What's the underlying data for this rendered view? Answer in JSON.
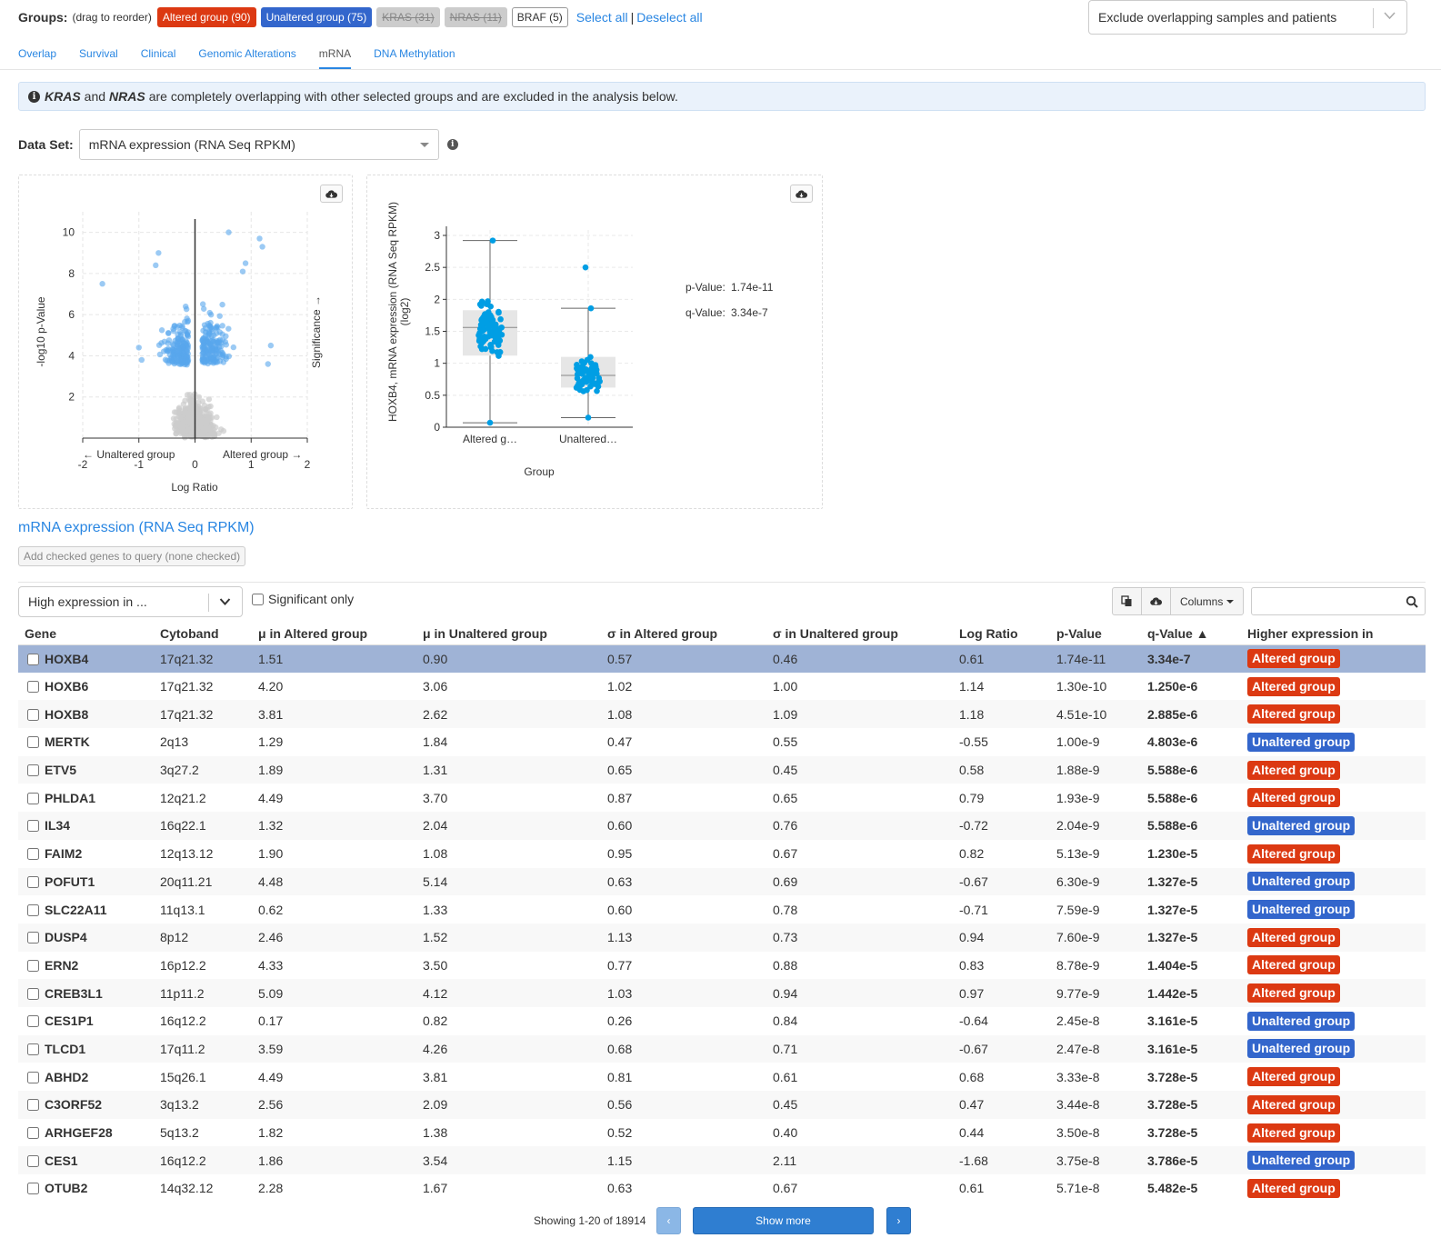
{
  "groups": {
    "label": "Groups:",
    "hint": "(drag to reorder)",
    "items": [
      {
        "label": "Altered group (90)",
        "kind": "altered"
      },
      {
        "label": "Unaltered group (75)",
        "kind": "unaltered"
      },
      {
        "label": "KRAS (31)",
        "kind": "disabled"
      },
      {
        "label": "NRAS (11)",
        "kind": "disabled"
      },
      {
        "label": "BRAF (5)",
        "kind": "plain"
      }
    ],
    "select_all": "Select all",
    "separator": "|",
    "deselect_all": "Deselect all"
  },
  "overlap_select": {
    "value": "Exclude overlapping samples and patients"
  },
  "tabs": [
    {
      "label": "Overlap",
      "active": false
    },
    {
      "label": "Survival",
      "active": false
    },
    {
      "label": "Clinical",
      "active": false
    },
    {
      "label": "Genomic Alterations",
      "active": false
    },
    {
      "label": "mRNA",
      "active": true
    },
    {
      "label": "DNA Methylation",
      "active": false
    }
  ],
  "alert": {
    "gene1": "KRAS",
    "and": "and",
    "gene2": "NRAS",
    "text": "are completely overlapping with other selected groups and are excluded in the analysis below."
  },
  "dataset": {
    "label": "Data Set:",
    "value": "mRNA expression (RNA Seq RPKM)"
  },
  "volcano": {
    "xlabel": "Log Ratio",
    "ylabel": "-log10 p-Value",
    "right_label": "Significance →",
    "left_arrow": "← Unaltered group",
    "right_arrow": "Altered group →",
    "xticks": [
      "-2",
      "-1",
      "0",
      "1",
      "2"
    ],
    "yticks": [
      "2",
      "4",
      "6",
      "8",
      "10"
    ]
  },
  "boxplot": {
    "ylabel": "HOXB4, mRNA expression (RNA Seq RPKM)",
    "ylabel2": "(log2)",
    "xlabel": "Group",
    "categories": [
      "Altered g…",
      "Unaltered…"
    ],
    "yticks": [
      "0",
      "0.5",
      "1",
      "1.5",
      "2",
      "2.5",
      "3"
    ],
    "pvalue_label": "p-Value:",
    "pvalue": "1.74e-11",
    "qvalue_label": "q-Value:",
    "qvalue": "3.34e-7"
  },
  "chart_data": [
    {
      "type": "scatter",
      "xlabel": "Log Ratio",
      "ylabel": "-log10 p-Value",
      "xlim": [
        -2,
        2
      ],
      "ylim": [
        0,
        11
      ],
      "grid": true,
      "colors": {
        "significant": "#58a6ec",
        "insignificant": "#cccccc"
      }
    },
    {
      "type": "box",
      "categories": [
        "Altered group",
        "Unaltered group"
      ],
      "ylabel": "HOXB4, mRNA expression (RNA Seq RPKM) (log2)",
      "xlabel": "Group",
      "ylim": [
        0,
        3
      ],
      "grid": true,
      "boxes": [
        {
          "name": "Altered group",
          "min": 0.07,
          "q1": 1.12,
          "median": 1.56,
          "q3": 1.83,
          "max": 2.92
        },
        {
          "name": "Unaltered group",
          "min": 0.15,
          "q1": 0.62,
          "median": 0.81,
          "q3": 1.1,
          "max": 1.86
        }
      ],
      "color": "#009ee4"
    }
  ],
  "table_section": {
    "title": "mRNA expression (RNA Seq RPKM)",
    "add_btn": "Add checked genes to query (none checked)",
    "filter_value": "High expression in ...",
    "significant_only": "Significant only",
    "columns_btn": "Columns"
  },
  "table": {
    "headers": [
      "Gene",
      "Cytoband",
      "μ in Altered group",
      "μ in Unaltered group",
      "σ in Altered group",
      "σ in Unaltered group",
      "Log Ratio",
      "p-Value",
      "q-Value ▲",
      "Higher expression in"
    ],
    "rows": [
      {
        "gene": "HOXB4",
        "cytoband": "17q21.32",
        "mu_a": "1.51",
        "mu_u": "0.90",
        "sd_a": "0.57",
        "sd_u": "0.46",
        "lr": "0.61",
        "p": "1.74e-11",
        "q": "3.34e-7",
        "higher": "Altered group"
      },
      {
        "gene": "HOXB6",
        "cytoband": "17q21.32",
        "mu_a": "4.20",
        "mu_u": "3.06",
        "sd_a": "1.02",
        "sd_u": "1.00",
        "lr": "1.14",
        "p": "1.30e-10",
        "q": "1.250e-6",
        "higher": "Altered group"
      },
      {
        "gene": "HOXB8",
        "cytoband": "17q21.32",
        "mu_a": "3.81",
        "mu_u": "2.62",
        "sd_a": "1.08",
        "sd_u": "1.09",
        "lr": "1.18",
        "p": "4.51e-10",
        "q": "2.885e-6",
        "higher": "Altered group"
      },
      {
        "gene": "MERTK",
        "cytoband": "2q13",
        "mu_a": "1.29",
        "mu_u": "1.84",
        "sd_a": "0.47",
        "sd_u": "0.55",
        "lr": "-0.55",
        "p": "1.00e-9",
        "q": "4.803e-6",
        "higher": "Unaltered group"
      },
      {
        "gene": "ETV5",
        "cytoband": "3q27.2",
        "mu_a": "1.89",
        "mu_u": "1.31",
        "sd_a": "0.65",
        "sd_u": "0.45",
        "lr": "0.58",
        "p": "1.88e-9",
        "q": "5.588e-6",
        "higher": "Altered group"
      },
      {
        "gene": "PHLDA1",
        "cytoband": "12q21.2",
        "mu_a": "4.49",
        "mu_u": "3.70",
        "sd_a": "0.87",
        "sd_u": "0.65",
        "lr": "0.79",
        "p": "1.93e-9",
        "q": "5.588e-6",
        "higher": "Altered group"
      },
      {
        "gene": "IL34",
        "cytoband": "16q22.1",
        "mu_a": "1.32",
        "mu_u": "2.04",
        "sd_a": "0.60",
        "sd_u": "0.76",
        "lr": "-0.72",
        "p": "2.04e-9",
        "q": "5.588e-6",
        "higher": "Unaltered group"
      },
      {
        "gene": "FAIM2",
        "cytoband": "12q13.12",
        "mu_a": "1.90",
        "mu_u": "1.08",
        "sd_a": "0.95",
        "sd_u": "0.67",
        "lr": "0.82",
        "p": "5.13e-9",
        "q": "1.230e-5",
        "higher": "Altered group"
      },
      {
        "gene": "POFUT1",
        "cytoband": "20q11.21",
        "mu_a": "4.48",
        "mu_u": "5.14",
        "sd_a": "0.63",
        "sd_u": "0.69",
        "lr": "-0.67",
        "p": "6.30e-9",
        "q": "1.327e-5",
        "higher": "Unaltered group"
      },
      {
        "gene": "SLC22A11",
        "cytoband": "11q13.1",
        "mu_a": "0.62",
        "mu_u": "1.33",
        "sd_a": "0.60",
        "sd_u": "0.78",
        "lr": "-0.71",
        "p": "7.59e-9",
        "q": "1.327e-5",
        "higher": "Unaltered group"
      },
      {
        "gene": "DUSP4",
        "cytoband": "8p12",
        "mu_a": "2.46",
        "mu_u": "1.52",
        "sd_a": "1.13",
        "sd_u": "0.73",
        "lr": "0.94",
        "p": "7.60e-9",
        "q": "1.327e-5",
        "higher": "Altered group"
      },
      {
        "gene": "ERN2",
        "cytoband": "16p12.2",
        "mu_a": "4.33",
        "mu_u": "3.50",
        "sd_a": "0.77",
        "sd_u": "0.88",
        "lr": "0.83",
        "p": "8.78e-9",
        "q": "1.404e-5",
        "higher": "Altered group"
      },
      {
        "gene": "CREB3L1",
        "cytoband": "11p11.2",
        "mu_a": "5.09",
        "mu_u": "4.12",
        "sd_a": "1.03",
        "sd_u": "0.94",
        "lr": "0.97",
        "p": "9.77e-9",
        "q": "1.442e-5",
        "higher": "Altered group"
      },
      {
        "gene": "CES1P1",
        "cytoband": "16q12.2",
        "mu_a": "0.17",
        "mu_u": "0.82",
        "sd_a": "0.26",
        "sd_u": "0.84",
        "lr": "-0.64",
        "p": "2.45e-8",
        "q": "3.161e-5",
        "higher": "Unaltered group"
      },
      {
        "gene": "TLCD1",
        "cytoband": "17q11.2",
        "mu_a": "3.59",
        "mu_u": "4.26",
        "sd_a": "0.68",
        "sd_u": "0.71",
        "lr": "-0.67",
        "p": "2.47e-8",
        "q": "3.161e-5",
        "higher": "Unaltered group"
      },
      {
        "gene": "ABHD2",
        "cytoband": "15q26.1",
        "mu_a": "4.49",
        "mu_u": "3.81",
        "sd_a": "0.81",
        "sd_u": "0.61",
        "lr": "0.68",
        "p": "3.33e-8",
        "q": "3.728e-5",
        "higher": "Altered group"
      },
      {
        "gene": "C3ORF52",
        "cytoband": "3q13.2",
        "mu_a": "2.56",
        "mu_u": "2.09",
        "sd_a": "0.56",
        "sd_u": "0.45",
        "lr": "0.47",
        "p": "3.44e-8",
        "q": "3.728e-5",
        "higher": "Altered group"
      },
      {
        "gene": "ARHGEF28",
        "cytoband": "5q13.2",
        "mu_a": "1.82",
        "mu_u": "1.38",
        "sd_a": "0.52",
        "sd_u": "0.40",
        "lr": "0.44",
        "p": "3.50e-8",
        "q": "3.728e-5",
        "higher": "Altered group"
      },
      {
        "gene": "CES1",
        "cytoband": "16q12.2",
        "mu_a": "1.86",
        "mu_u": "3.54",
        "sd_a": "1.15",
        "sd_u": "2.11",
        "lr": "-1.68",
        "p": "3.75e-8",
        "q": "3.786e-5",
        "higher": "Unaltered group"
      },
      {
        "gene": "OTUB2",
        "cytoband": "14q32.12",
        "mu_a": "2.28",
        "mu_u": "1.67",
        "sd_a": "0.63",
        "sd_u": "0.67",
        "lr": "0.61",
        "p": "5.71e-8",
        "q": "5.482e-5",
        "higher": "Altered group"
      }
    ]
  },
  "pager": {
    "showing": "Showing 1-20 of 18914",
    "show_more": "Show more",
    "prev": "‹",
    "next": "›"
  },
  "colors": {
    "altered": "#dc3912",
    "unaltered": "#3366cc",
    "link": "#2986e2",
    "selected_row": "#9fb3d6"
  }
}
